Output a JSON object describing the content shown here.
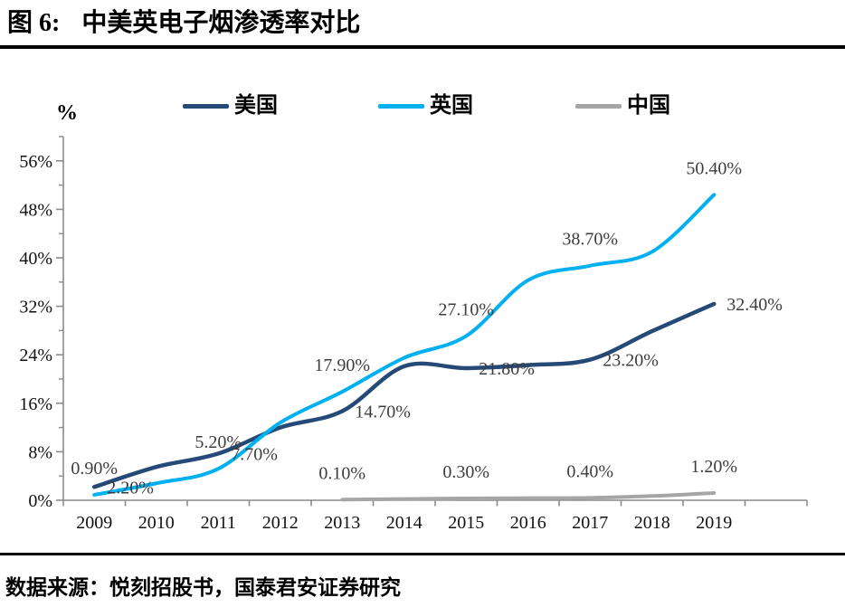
{
  "figure": {
    "title_prefix": "图 6:",
    "title": "中美英电子烟渗透率对比",
    "unit_label": "%",
    "source": "数据来源：悦刻招股书，国泰君安证券研究"
  },
  "legend": [
    {
      "label": "美国",
      "color": "#254a77"
    },
    {
      "label": "英国",
      "color": "#00b0f0"
    },
    {
      "label": "中国",
      "color": "#a6a6a6"
    }
  ],
  "chart_data": {
    "type": "line",
    "title": "中美英电子烟渗透率对比",
    "ylabel": "%",
    "ylim": [
      0,
      60
    ],
    "grid": false,
    "legend_position": "top",
    "axis_color": "#8c8c8c",
    "data_label_color": "#3d3d3d",
    "tick_label_color": "#111111",
    "categories": [
      "2009",
      "2010",
      "2011",
      "2012",
      "2013",
      "2014",
      "2015",
      "2016",
      "2017",
      "2018",
      "2019"
    ],
    "yticks": [
      {
        "value": 0,
        "label": "0%"
      },
      {
        "value": 8,
        "label": "8%"
      },
      {
        "value": 16,
        "label": "16%"
      },
      {
        "value": 24,
        "label": "24%"
      },
      {
        "value": 32,
        "label": "32%"
      },
      {
        "value": 40,
        "label": "40%"
      },
      {
        "value": 48,
        "label": "48%"
      },
      {
        "value": 56,
        "label": "56%"
      }
    ],
    "y_minor_ticks": [
      4,
      12,
      20,
      28,
      36,
      44,
      52,
      60
    ],
    "series": [
      {
        "name": "美国",
        "key": "us",
        "color": "#254a77",
        "stroke_width": 4.5,
        "values": [
          2.2,
          5.5,
          7.7,
          12.0,
          14.7,
          22.1,
          21.8,
          22.3,
          23.2,
          27.9,
          32.4
        ],
        "labels": [
          "2.20%",
          null,
          "7.70%",
          null,
          "14.70%",
          null,
          "21.80%",
          null,
          "23.20%",
          null,
          "32.40%"
        ],
        "label_placement": "right"
      },
      {
        "name": "英国",
        "key": "uk",
        "color": "#00b0f0",
        "stroke_width": 4,
        "values": [
          0.9,
          2.8,
          5.2,
          12.8,
          17.9,
          23.5,
          27.1,
          36.3,
          38.7,
          41.0,
          50.4
        ],
        "labels": [
          "0.90%",
          null,
          "5.20%",
          null,
          "17.90%",
          null,
          "27.10%",
          null,
          "38.70%",
          null,
          "50.40%"
        ],
        "label_placement": "above"
      },
      {
        "name": "中国",
        "key": "china",
        "color": "#a6a6a6",
        "stroke_width": 4,
        "values": [
          null,
          null,
          null,
          null,
          0.1,
          0.2,
          0.3,
          0.35,
          0.4,
          0.7,
          1.2
        ],
        "labels": [
          null,
          null,
          null,
          null,
          "0.10%",
          null,
          "0.30%",
          null,
          "0.40%",
          null,
          "1.20%"
        ],
        "label_placement": "above"
      }
    ]
  }
}
